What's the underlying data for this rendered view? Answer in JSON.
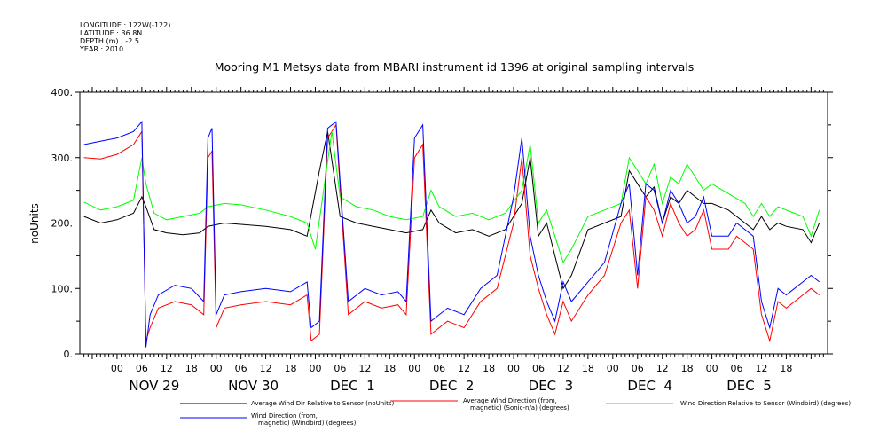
{
  "meta": {
    "longitude": "LONGITUDE : 122W(-122)",
    "latitude": "LATITUDE : 36.8N",
    "depth": "DEPTH (m) : -2.5",
    "year": "YEAR : 2010"
  },
  "chart_data": {
    "type": "line",
    "title": "Mooring M1 Metsys data from MBARI instrument id 1396 at original sampling intervals",
    "ylabel": "noUnits",
    "xlabel": "",
    "ylim": [
      0,
      400
    ],
    "xlim_hours": [
      -9,
      172
    ],
    "yticks": [
      {
        "value": 0,
        "label": "0."
      },
      {
        "value": 100,
        "label": "100."
      },
      {
        "value": 200,
        "label": "200."
      },
      {
        "value": 300,
        "label": "300."
      },
      {
        "value": 400,
        "label": "400."
      }
    ],
    "x_hour_tick_labels": [
      "00",
      "06",
      "12",
      "18",
      "00",
      "06",
      "12",
      "18",
      "00",
      "06",
      "12",
      "18",
      "00",
      "06",
      "12",
      "18",
      "00",
      "06",
      "12",
      "18",
      "00",
      "06",
      "12",
      "18",
      "00",
      "06",
      "12",
      "18"
    ],
    "day_labels": [
      "NOV 29",
      "NOV 30",
      "DEC  1",
      "DEC  2",
      "DEC  3",
      "DEC  4",
      "DEC  5"
    ],
    "grid": false,
    "legend_position": "bottom",
    "series": [
      {
        "name": "Average Wind Dir Relative to Sensor (noUnits)",
        "color": "#000000",
        "x": [
          -8,
          -4,
          0,
          4,
          6,
          7,
          9,
          12,
          16,
          20,
          22,
          26,
          30,
          36,
          42,
          46,
          49,
          51,
          54,
          58,
          62,
          66,
          70,
          74,
          76,
          78,
          82,
          86,
          90,
          94,
          98,
          100,
          102,
          104,
          106,
          108,
          110,
          114,
          118,
          122,
          124,
          126,
          128,
          130,
          132,
          134,
          136,
          138,
          140,
          142,
          144,
          148,
          152,
          154,
          156,
          158,
          160,
          162,
          166,
          168,
          170
        ],
        "y": [
          210,
          200,
          205,
          215,
          240,
          225,
          190,
          185,
          182,
          185,
          195,
          200,
          198,
          195,
          190,
          180,
          280,
          340,
          210,
          200,
          195,
          190,
          185,
          190,
          220,
          200,
          185,
          190,
          180,
          190,
          230,
          300,
          180,
          200,
          150,
          100,
          120,
          190,
          200,
          210,
          280,
          260,
          240,
          255,
          200,
          240,
          230,
          250,
          240,
          230,
          230,
          220,
          200,
          190,
          210,
          190,
          200,
          195,
          190,
          170,
          200
        ]
      },
      {
        "name": "Average Wind Direction (from, magnetic) (Sonic-n/a) (degrees)",
        "color": "#ff0000",
        "x": [
          -8,
          -4,
          0,
          4,
          6,
          7,
          8,
          10,
          14,
          18,
          21,
          22,
          23,
          24,
          26,
          30,
          36,
          42,
          46,
          47,
          49,
          51,
          53,
          56,
          60,
          64,
          68,
          70,
          72,
          74,
          76,
          80,
          84,
          88,
          92,
          96,
          98,
          100,
          102,
          104,
          106,
          108,
          110,
          114,
          118,
          122,
          124,
          126,
          128,
          130,
          132,
          134,
          136,
          138,
          140,
          142,
          144,
          148,
          150,
          152,
          154,
          156,
          158,
          160,
          162,
          166,
          168,
          170
        ],
        "y": [
          300,
          298,
          305,
          320,
          340,
          20,
          40,
          70,
          80,
          75,
          60,
          300,
          310,
          40,
          70,
          75,
          80,
          75,
          90,
          20,
          30,
          330,
          350,
          60,
          80,
          70,
          75,
          60,
          300,
          320,
          30,
          50,
          40,
          80,
          100,
          200,
          300,
          150,
          100,
          60,
          30,
          80,
          50,
          90,
          120,
          200,
          220,
          100,
          240,
          220,
          180,
          230,
          200,
          180,
          190,
          220,
          160,
          160,
          180,
          170,
          160,
          60,
          20,
          80,
          70,
          90,
          100,
          90
        ]
      },
      {
        "name": "Wind Direction Relative to Sensor (Windbird) (degrees)",
        "color": "#00ff00",
        "x": [
          -8,
          -4,
          0,
          4,
          6,
          7,
          9,
          12,
          16,
          20,
          22,
          26,
          30,
          36,
          42,
          46,
          48,
          50,
          52,
          54,
          58,
          62,
          66,
          70,
          74,
          76,
          78,
          82,
          86,
          90,
          94,
          98,
          100,
          102,
          104,
          106,
          108,
          110,
          114,
          118,
          122,
          124,
          126,
          128,
          130,
          132,
          134,
          136,
          138,
          140,
          142,
          144,
          148,
          152,
          154,
          156,
          158,
          160,
          162,
          166,
          168,
          170
        ],
        "y": [
          232,
          220,
          225,
          235,
          300,
          260,
          215,
          205,
          210,
          215,
          225,
          230,
          228,
          220,
          210,
          200,
          160,
          250,
          340,
          240,
          225,
          220,
          210,
          205,
          210,
          250,
          225,
          210,
          215,
          205,
          215,
          250,
          320,
          200,
          220,
          180,
          140,
          160,
          210,
          220,
          230,
          300,
          280,
          260,
          290,
          230,
          270,
          260,
          290,
          270,
          250,
          260,
          245,
          230,
          210,
          230,
          210,
          225,
          220,
          210,
          180,
          220
        ]
      },
      {
        "name": "Wind Direction (from, magnetic) (Windbird) (degrees)",
        "color": "#0000ff",
        "x": [
          -8,
          -4,
          0,
          4,
          6,
          7,
          8,
          10,
          14,
          18,
          21,
          22,
          23,
          24,
          26,
          30,
          36,
          42,
          46,
          47,
          49,
          51,
          53,
          56,
          60,
          64,
          68,
          70,
          72,
          74,
          76,
          80,
          84,
          88,
          92,
          96,
          98,
          100,
          102,
          104,
          106,
          108,
          110,
          114,
          118,
          122,
          124,
          126,
          128,
          130,
          132,
          134,
          136,
          138,
          140,
          142,
          144,
          148,
          150,
          152,
          154,
          156,
          158,
          160,
          162,
          166,
          168,
          170
        ],
        "y": [
          320,
          325,
          330,
          340,
          355,
          10,
          60,
          90,
          105,
          100,
          80,
          330,
          345,
          60,
          90,
          95,
          100,
          95,
          110,
          40,
          50,
          345,
          355,
          80,
          100,
          90,
          95,
          80,
          330,
          350,
          50,
          70,
          60,
          100,
          120,
          240,
          330,
          180,
          120,
          80,
          50,
          110,
          80,
          110,
          140,
          230,
          260,
          120,
          260,
          250,
          200,
          250,
          230,
          200,
          210,
          240,
          180,
          180,
          200,
          190,
          180,
          80,
          40,
          100,
          90,
          110,
          120,
          110
        ]
      }
    ]
  },
  "legend": {
    "items": [
      {
        "line1": "Average Wind Dir Relative to Sensor (noUnits)",
        "line2": "",
        "color": "#000000"
      },
      {
        "line1": "Average Wind Direction (from,",
        "line2": "magnetic) (Sonic-n/a) (degrees)",
        "color": "#ff0000"
      },
      {
        "line1": "Wind Direction Relative to Sensor (Windbird) (degrees)",
        "line2": "",
        "color": "#00ff00"
      },
      {
        "line1": "Wind Direction (from,",
        "line2": "magnetic) (Windbird) (degrees)",
        "color": "#0000ff"
      }
    ]
  }
}
